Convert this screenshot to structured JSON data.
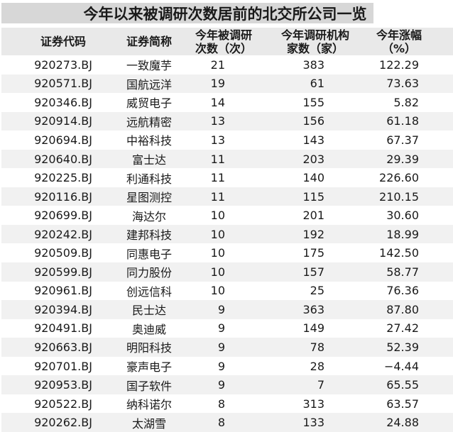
{
  "colors": {
    "title_bar_bg": "#d7d7d7",
    "header_bg": "#e9e9e9",
    "row_alt_bg": "#f1f1f1",
    "text": "#1a1a1a"
  },
  "chart_data": {
    "type": "table",
    "title": "今年以来被调研次数居前的北交所公司一览",
    "columns": [
      "证券代码",
      "证券简称",
      "今年被调研次数（次）",
      "今年调研机构家数（家）",
      "今年涨幅（%）"
    ],
    "header_lines": [
      [
        "证券代码"
      ],
      [
        "证券简称"
      ],
      [
        "今年被调研",
        "次数（次）"
      ],
      [
        "今年调研机构",
        "家数（家）"
      ],
      [
        "今年涨幅",
        "（%）"
      ]
    ],
    "rows": [
      {
        "code": "920273.BJ",
        "name": "一致魔芋",
        "times": 21,
        "orgs": 383,
        "change": "122.29"
      },
      {
        "code": "920571.BJ",
        "name": "国航远洋",
        "times": 19,
        "orgs": 61,
        "change": "73.63"
      },
      {
        "code": "920346.BJ",
        "name": "威贸电子",
        "times": 14,
        "orgs": 155,
        "change": "5.82"
      },
      {
        "code": "920914.BJ",
        "name": "远航精密",
        "times": 13,
        "orgs": 156,
        "change": "61.18"
      },
      {
        "code": "920694.BJ",
        "name": "中裕科技",
        "times": 13,
        "orgs": 143,
        "change": "67.37"
      },
      {
        "code": "920640.BJ",
        "name": "富士达",
        "times": 11,
        "orgs": 203,
        "change": "29.39"
      },
      {
        "code": "920225.BJ",
        "name": "利通科技",
        "times": 11,
        "orgs": 140,
        "change": "226.60"
      },
      {
        "code": "920116.BJ",
        "name": "星图测控",
        "times": 11,
        "orgs": 115,
        "change": "210.15"
      },
      {
        "code": "920699.BJ",
        "name": "海达尔",
        "times": 10,
        "orgs": 201,
        "change": "30.60"
      },
      {
        "code": "920242.BJ",
        "name": "建邦科技",
        "times": 10,
        "orgs": 192,
        "change": "18.99"
      },
      {
        "code": "920509.BJ",
        "name": "同惠电子",
        "times": 10,
        "orgs": 175,
        "change": "142.50"
      },
      {
        "code": "920599.BJ",
        "name": "同力股份",
        "times": 10,
        "orgs": 157,
        "change": "58.77"
      },
      {
        "code": "920961.BJ",
        "name": "创远信科",
        "times": 10,
        "orgs": 25,
        "change": "76.36"
      },
      {
        "code": "920394.BJ",
        "name": "民士达",
        "times": 9,
        "orgs": 363,
        "change": "87.80"
      },
      {
        "code": "920491.BJ",
        "name": "奥迪威",
        "times": 9,
        "orgs": 149,
        "change": "27.42"
      },
      {
        "code": "920663.BJ",
        "name": "明阳科技",
        "times": 9,
        "orgs": 78,
        "change": "52.39"
      },
      {
        "code": "920701.BJ",
        "name": "豪声电子",
        "times": 9,
        "orgs": 28,
        "change": "−4.44"
      },
      {
        "code": "920953.BJ",
        "name": "国子软件",
        "times": 9,
        "orgs": 7,
        "change": "65.55"
      },
      {
        "code": "920522.BJ",
        "name": "纳科诺尔",
        "times": 8,
        "orgs": 313,
        "change": "63.57"
      },
      {
        "code": "920262.BJ",
        "name": "太湖雪",
        "times": 8,
        "orgs": 133,
        "change": "24.88"
      }
    ]
  }
}
